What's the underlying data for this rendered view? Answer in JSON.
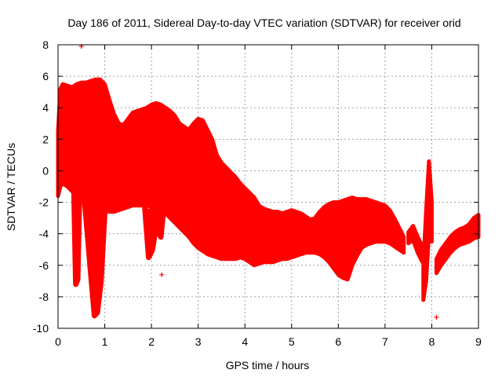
{
  "chart_data": {
    "type": "area",
    "title": "Day 186 of 2011, Sidereal Day-to-day VTEC variation (SDTVAR) for receiver orid",
    "xlabel": "GPS time / hours",
    "ylabel": "SDTVAR / TECUs",
    "xlim": [
      0,
      9
    ],
    "ylim": [
      -10,
      8
    ],
    "xticks": [
      0,
      1,
      2,
      3,
      4,
      5,
      6,
      7,
      8,
      9
    ],
    "yticks": [
      -10,
      -8,
      -6,
      -4,
      -2,
      0,
      2,
      4,
      6,
      8
    ],
    "grid": true,
    "series_color": "#ff0000",
    "marker": "+",
    "band": {
      "name": "SDTVAR envelope",
      "x": [
        0.0,
        0.05,
        0.1,
        0.2,
        0.3,
        0.4,
        0.5,
        0.6,
        0.7,
        0.8,
        0.9,
        1.0,
        1.1,
        1.2,
        1.3,
        1.4,
        1.5,
        1.6,
        1.7,
        1.8,
        1.9,
        2.0,
        2.1,
        2.2,
        2.3,
        2.4,
        2.5,
        2.6,
        2.7,
        2.8,
        2.9,
        3.0,
        3.1,
        3.2,
        3.3,
        3.4,
        3.5,
        3.6,
        3.7,
        3.8,
        3.9,
        4.0,
        4.1,
        4.2,
        4.3,
        4.4,
        4.5,
        4.6,
        4.7,
        4.8,
        4.9,
        5.0,
        5.1,
        5.2,
        5.3,
        5.4,
        5.5,
        5.6,
        5.7,
        5.8,
        5.9,
        6.0,
        6.1,
        6.2,
        6.3,
        6.4,
        6.5,
        6.6,
        6.7,
        6.8,
        6.9,
        7.0,
        7.1,
        7.2,
        7.3,
        7.4
      ],
      "upper": [
        2.5,
        5.2,
        5.5,
        5.4,
        5.3,
        5.5,
        5.6,
        5.6,
        5.7,
        5.8,
        5.8,
        5.5,
        4.5,
        3.6,
        3.0,
        2.9,
        3.3,
        3.7,
        3.8,
        3.9,
        4.0,
        4.2,
        4.3,
        4.2,
        4.0,
        3.8,
        3.5,
        3.0,
        2.8,
        2.6,
        3.0,
        3.3,
        3.2,
        2.6,
        2.0,
        1.0,
        0.5,
        0.2,
        -0.1,
        -0.4,
        -0.8,
        -1.1,
        -1.4,
        -1.7,
        -2.2,
        -2.4,
        -2.5,
        -2.6,
        -2.6,
        -2.7,
        -2.6,
        -2.5,
        -2.6,
        -2.7,
        -2.9,
        -3.1,
        -3.0,
        -2.6,
        -2.3,
        -2.1,
        -2.0,
        -2.0,
        -1.9,
        -1.8,
        -1.7,
        -1.8,
        -1.8,
        -1.8,
        -1.9,
        -2.0,
        -2.1,
        -2.2,
        -2.5,
        -3.0,
        -3.6,
        -4.2
      ],
      "lower": [
        -1.6,
        -1.0,
        -0.8,
        -1.0,
        -1.3,
        -1.5,
        -1.7,
        -1.8,
        -1.9,
        -2.0,
        -2.3,
        -2.5,
        -2.6,
        -2.6,
        -2.5,
        -2.4,
        -2.3,
        -2.2,
        -2.2,
        -2.2,
        -2.2,
        -2.3,
        -2.4,
        -2.5,
        -2.7,
        -3.0,
        -3.3,
        -3.6,
        -3.9,
        -4.2,
        -4.6,
        -4.9,
        -5.1,
        -5.3,
        -5.4,
        -5.5,
        -5.6,
        -5.6,
        -5.6,
        -5.6,
        -5.5,
        -5.6,
        -5.8,
        -6.0,
        -5.9,
        -5.8,
        -5.8,
        -5.8,
        -5.7,
        -5.6,
        -5.6,
        -5.5,
        -5.4,
        -5.3,
        -5.2,
        -5.2,
        -5.2,
        -5.3,
        -5.5,
        -5.8,
        -6.2,
        -6.6,
        -6.8,
        -6.9,
        -6.0,
        -5.4,
        -4.9,
        -4.7,
        -4.6,
        -4.5,
        -4.5,
        -4.5,
        -4.6,
        -4.8,
        -5.0,
        -5.2
      ]
    },
    "dips": [
      {
        "name": "dip near 0.4 h",
        "x": [
          0.34,
          0.38,
          0.42,
          0.46
        ],
        "y": [
          -1.2,
          -7.2,
          -6.9,
          -1.4
        ]
      },
      {
        "name": "dip near 0.8 h",
        "x": [
          0.56,
          0.7,
          0.78,
          0.84,
          0.92,
          1.0
        ],
        "y": [
          -1.6,
          -6.5,
          -9.2,
          -9.0,
          -7.0,
          -2.6
        ]
      },
      {
        "name": "dip near 2.0 h",
        "x": [
          1.86,
          1.94,
          2.02,
          2.1,
          2.2,
          2.26
        ],
        "y": [
          -2.4,
          -5.5,
          -5.0,
          -3.5,
          -4.2,
          -2.4
        ]
      }
    ],
    "segments": [
      {
        "name": "segment 7.5-7.8 h",
        "x": [
          7.5,
          7.6,
          7.7,
          7.8
        ],
        "upper": [
          -3.9,
          -3.5,
          -4.2,
          -4.8
        ],
        "lower": [
          -4.6,
          -4.4,
          -5.2,
          -5.8
        ]
      },
      {
        "name": "spike near 7.9 h",
        "x": [
          7.82,
          7.88,
          7.94,
          8.0
        ],
        "upper": [
          -6.0,
          -2.5,
          0.6,
          -2.0
        ],
        "lower": [
          -8.2,
          -7.0,
          -4.0,
          -4.5
        ]
      },
      {
        "name": "segment 8.1-9.0 h",
        "x": [
          8.1,
          8.2,
          8.3,
          8.4,
          8.5,
          8.6,
          8.7,
          8.8,
          8.9,
          9.0
        ],
        "upper": [
          -5.6,
          -5.0,
          -4.6,
          -4.2,
          -3.9,
          -3.7,
          -3.6,
          -3.4,
          -3.0,
          -2.8
        ],
        "lower": [
          -6.5,
          -6.0,
          -5.6,
          -5.2,
          -4.9,
          -4.7,
          -4.6,
          -4.5,
          -4.3,
          -4.2
        ]
      }
    ],
    "outliers": [
      {
        "x": 0.5,
        "y": 7.9
      },
      {
        "x": 0.35,
        "y": -2.6
      },
      {
        "x": 2.22,
        "y": -6.6
      },
      {
        "x": 8.1,
        "y": -9.3
      }
    ]
  }
}
